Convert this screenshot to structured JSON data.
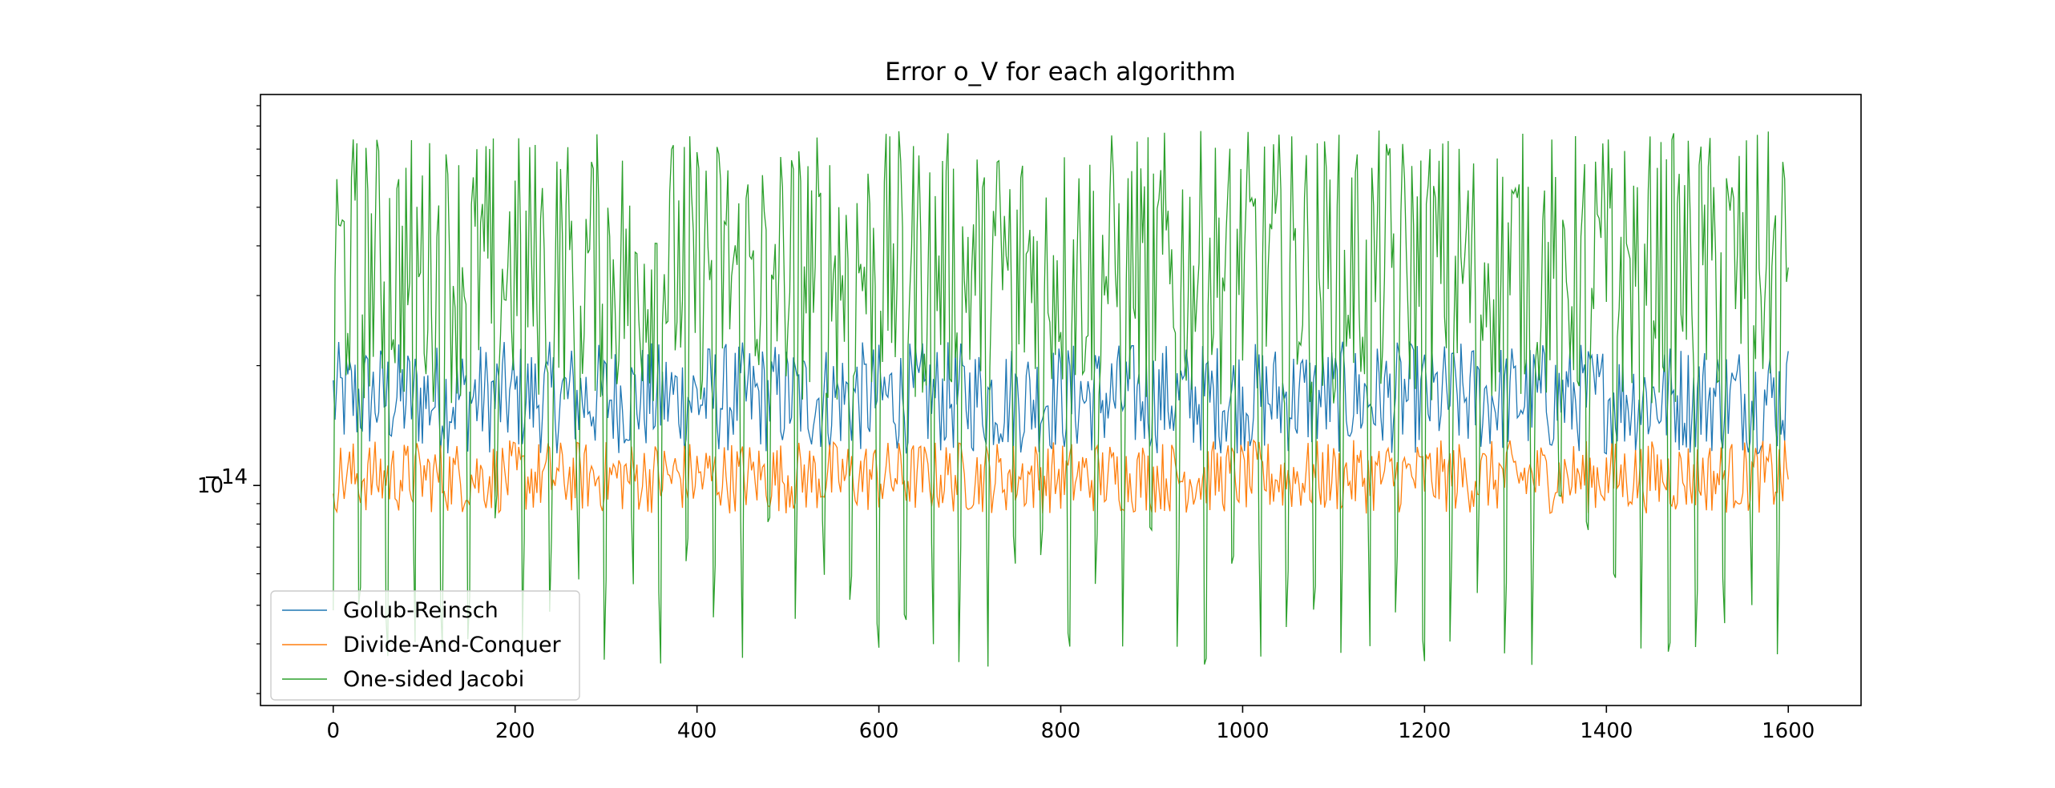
{
  "chart_data": {
    "type": "line",
    "title": "Error o_V for each algorithm",
    "xlabel": "",
    "ylabel": "",
    "yscale": "log",
    "xlim": [
      -80,
      1680
    ],
    "ylim": [
      2.8e-15,
      9.6e-14
    ],
    "x_range": [
      0,
      1600
    ],
    "x_ticks": [
      0,
      200,
      400,
      600,
      800,
      1000,
      1200,
      1400,
      1600
    ],
    "x_tick_labels": [
      "0",
      "200",
      "400",
      "600",
      "800",
      "1000",
      "1200",
      "1400",
      "1600"
    ],
    "y_major_ticks": [
      1e-14
    ],
    "y_tick_base": "10",
    "y_tick_exp": "−14",
    "y_minor_ticks": [
      3e-15,
      4e-15,
      5e-15,
      6e-15,
      7e-15,
      8e-15,
      9e-15,
      2e-14,
      3e-14,
      4e-14,
      5e-14,
      6e-14,
      7e-14,
      8e-14,
      9e-14
    ],
    "grid": false,
    "legend_position": "lower left",
    "series": [
      {
        "name": "Golub-Reinsch",
        "color": "#1f77b4",
        "typical_range": [
          1.2e-14,
          2.3e-14
        ],
        "center": 1.6e-14
      },
      {
        "name": "Divide-And-Conquer",
        "color": "#ff7f0e",
        "typical_range": [
          8.5e-15,
          1.3e-14
        ],
        "center": 1.05e-14
      },
      {
        "name": "One-sided Jacobi",
        "color": "#2ca02c",
        "typical_range": [
          1e-14,
          7.5e-14
        ],
        "center": 4e-14,
        "dip_min": 3.5e-15,
        "peak_max": 7.8e-14
      }
    ]
  }
}
